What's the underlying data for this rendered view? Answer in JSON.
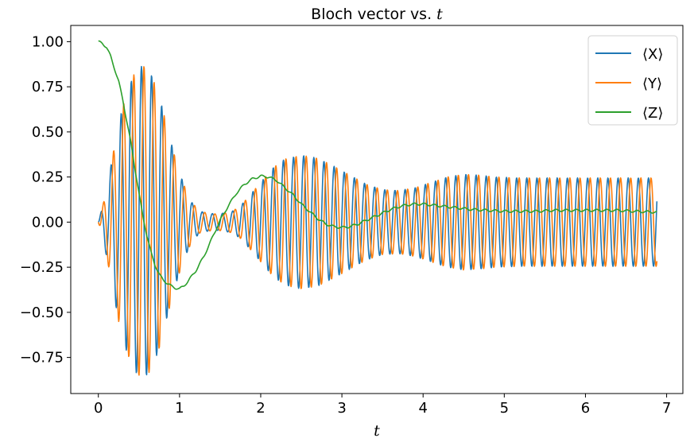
{
  "chart_data": {
    "type": "line",
    "title": "Bloch vector vs. t",
    "title_parts": {
      "text": "Bloch vector vs. ",
      "var": "t"
    },
    "xlabel": "t",
    "ylabel": "",
    "xlim": [
      -0.34,
      7.2
    ],
    "ylim": [
      -0.95,
      1.09
    ],
    "xticks": [
      0,
      1,
      2,
      3,
      4,
      5,
      6,
      7
    ],
    "xtick_labels": [
      "0",
      "1",
      "2",
      "3",
      "4",
      "5",
      "6",
      "7"
    ],
    "yticks": [
      -0.75,
      -0.5,
      -0.25,
      0.0,
      0.25,
      0.5,
      0.75,
      1.0
    ],
    "ytick_labels": [
      "−0.75",
      "−0.50",
      "−0.25",
      "0.00",
      "0.25",
      "0.50",
      "0.75",
      "1.00"
    ],
    "grid": false,
    "legend_position": "top-right",
    "x_start": 0,
    "x_end": 6.88,
    "samples": 1400,
    "oscillation_angular_frequency": 50.3,
    "envelope": {
      "t": [
        0,
        0.06,
        0.15,
        0.25,
        0.35,
        0.45,
        0.55,
        0.65,
        0.75,
        0.85,
        0.95,
        1.05,
        1.15,
        1.25,
        1.35,
        1.45,
        1.55,
        1.65,
        1.75,
        1.85,
        2.0,
        2.15,
        2.3,
        2.5,
        2.7,
        2.9,
        3.1,
        3.3,
        3.5,
        3.7,
        3.9,
        4.1,
        4.3,
        4.5,
        4.7,
        4.9,
        5.2,
        5.6,
        6.0,
        6.4,
        6.88
      ],
      "r": [
        0.0,
        0.1,
        0.3,
        0.55,
        0.72,
        0.83,
        0.87,
        0.82,
        0.7,
        0.52,
        0.35,
        0.21,
        0.11,
        0.06,
        0.05,
        0.045,
        0.05,
        0.06,
        0.09,
        0.14,
        0.22,
        0.3,
        0.35,
        0.37,
        0.355,
        0.31,
        0.26,
        0.21,
        0.18,
        0.175,
        0.19,
        0.22,
        0.25,
        0.265,
        0.26,
        0.25,
        0.245,
        0.245,
        0.245,
        0.245,
        0.245
      ]
    },
    "series": [
      {
        "name": "⟨X⟩",
        "color": "#1f77b4",
        "phase": 0.0
      },
      {
        "name": "⟨Y⟩",
        "color": "#ff7f0e",
        "phase": -1.5708
      },
      {
        "name": "⟨Z⟩",
        "color": "#2ca02c",
        "x": [
          0,
          0.05,
          0.1,
          0.15,
          0.2,
          0.25,
          0.3,
          0.35,
          0.4,
          0.45,
          0.5,
          0.55,
          0.6,
          0.65,
          0.7,
          0.75,
          0.8,
          0.85,
          0.9,
          0.95,
          1.0,
          1.05,
          1.1,
          1.2,
          1.3,
          1.4,
          1.5,
          1.6,
          1.7,
          1.8,
          1.9,
          2.0,
          2.1,
          2.2,
          2.3,
          2.4,
          2.5,
          2.6,
          2.7,
          2.8,
          2.9,
          3.0,
          3.1,
          3.2,
          3.3,
          3.4,
          3.5,
          3.6,
          3.7,
          3.8,
          3.9,
          4.0,
          4.1,
          4.2,
          4.3,
          4.4,
          4.5,
          4.6,
          4.8,
          5.0,
          5.2,
          5.4,
          5.6,
          5.8,
          6.0,
          6.2,
          6.4,
          6.6,
          6.88
        ],
        "y": [
          1.0,
          0.99,
          0.97,
          0.92,
          0.85,
          0.78,
          0.68,
          0.56,
          0.44,
          0.3,
          0.16,
          0.03,
          -0.08,
          -0.17,
          -0.24,
          -0.29,
          -0.32,
          -0.34,
          -0.355,
          -0.365,
          -0.37,
          -0.355,
          -0.33,
          -0.27,
          -0.19,
          -0.09,
          0.01,
          0.09,
          0.16,
          0.21,
          0.24,
          0.255,
          0.25,
          0.23,
          0.19,
          0.15,
          0.1,
          0.06,
          0.02,
          -0.01,
          -0.025,
          -0.03,
          -0.025,
          -0.01,
          0.01,
          0.03,
          0.05,
          0.07,
          0.085,
          0.095,
          0.1,
          0.1,
          0.095,
          0.09,
          0.085,
          0.08,
          0.075,
          0.07,
          0.065,
          0.06,
          0.06,
          0.06,
          0.065,
          0.065,
          0.065,
          0.065,
          0.065,
          0.06,
          0.055
        ],
        "noise_amplitude": 0.006
      }
    ]
  }
}
